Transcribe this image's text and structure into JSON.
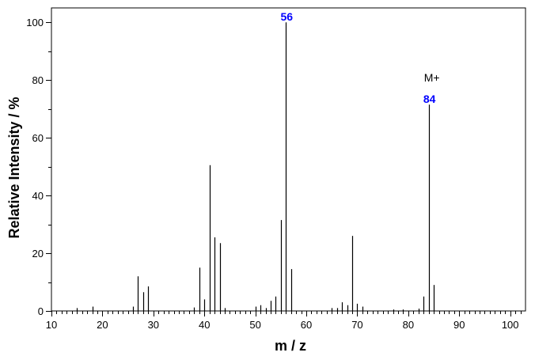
{
  "chart_data": {
    "type": "bar",
    "xlabel": "m / z",
    "ylabel": "Relative Intensity / %",
    "xlim": [
      10,
      103
    ],
    "ylim": [
      0,
      105
    ],
    "x_ticks": [
      10,
      20,
      30,
      40,
      50,
      60,
      70,
      80,
      90,
      100
    ],
    "y_ticks": [
      0,
      20,
      40,
      60,
      80,
      100
    ],
    "grid": false,
    "bar_color": "#000000",
    "label_color": "#0000ff",
    "peaks": [
      {
        "x": 15,
        "y": 1.0
      },
      {
        "x": 18,
        "y": 1.5
      },
      {
        "x": 26,
        "y": 1.5
      },
      {
        "x": 27,
        "y": 12.0
      },
      {
        "x": 28,
        "y": 6.5
      },
      {
        "x": 29,
        "y": 8.5
      },
      {
        "x": 38,
        "y": 1.2
      },
      {
        "x": 39,
        "y": 15.0
      },
      {
        "x": 40,
        "y": 4.0
      },
      {
        "x": 41,
        "y": 50.5
      },
      {
        "x": 42,
        "y": 25.5
      },
      {
        "x": 43,
        "y": 23.5
      },
      {
        "x": 44,
        "y": 1.0
      },
      {
        "x": 50,
        "y": 1.5
      },
      {
        "x": 51,
        "y": 2.0
      },
      {
        "x": 52,
        "y": 1.0
      },
      {
        "x": 53,
        "y": 3.5
      },
      {
        "x": 54,
        "y": 5.0
      },
      {
        "x": 55,
        "y": 31.5
      },
      {
        "x": 56,
        "y": 100.0
      },
      {
        "x": 57,
        "y": 14.5
      },
      {
        "x": 65,
        "y": 1.0
      },
      {
        "x": 66,
        "y": 1.0
      },
      {
        "x": 67,
        "y": 3.0
      },
      {
        "x": 68,
        "y": 2.0
      },
      {
        "x": 69,
        "y": 26.0
      },
      {
        "x": 70,
        "y": 2.5
      },
      {
        "x": 71,
        "y": 1.5
      },
      {
        "x": 77,
        "y": 0.5
      },
      {
        "x": 79,
        "y": 0.5
      },
      {
        "x": 82,
        "y": 0.8
      },
      {
        "x": 83,
        "y": 5.0
      },
      {
        "x": 84,
        "y": 71.5
      },
      {
        "x": 85,
        "y": 9.0
      }
    ],
    "peak_labels": [
      {
        "x": 56,
        "text": "56"
      },
      {
        "x": 84,
        "text": "84"
      }
    ],
    "annotations": [
      {
        "x": 84,
        "text": "M+"
      }
    ]
  }
}
